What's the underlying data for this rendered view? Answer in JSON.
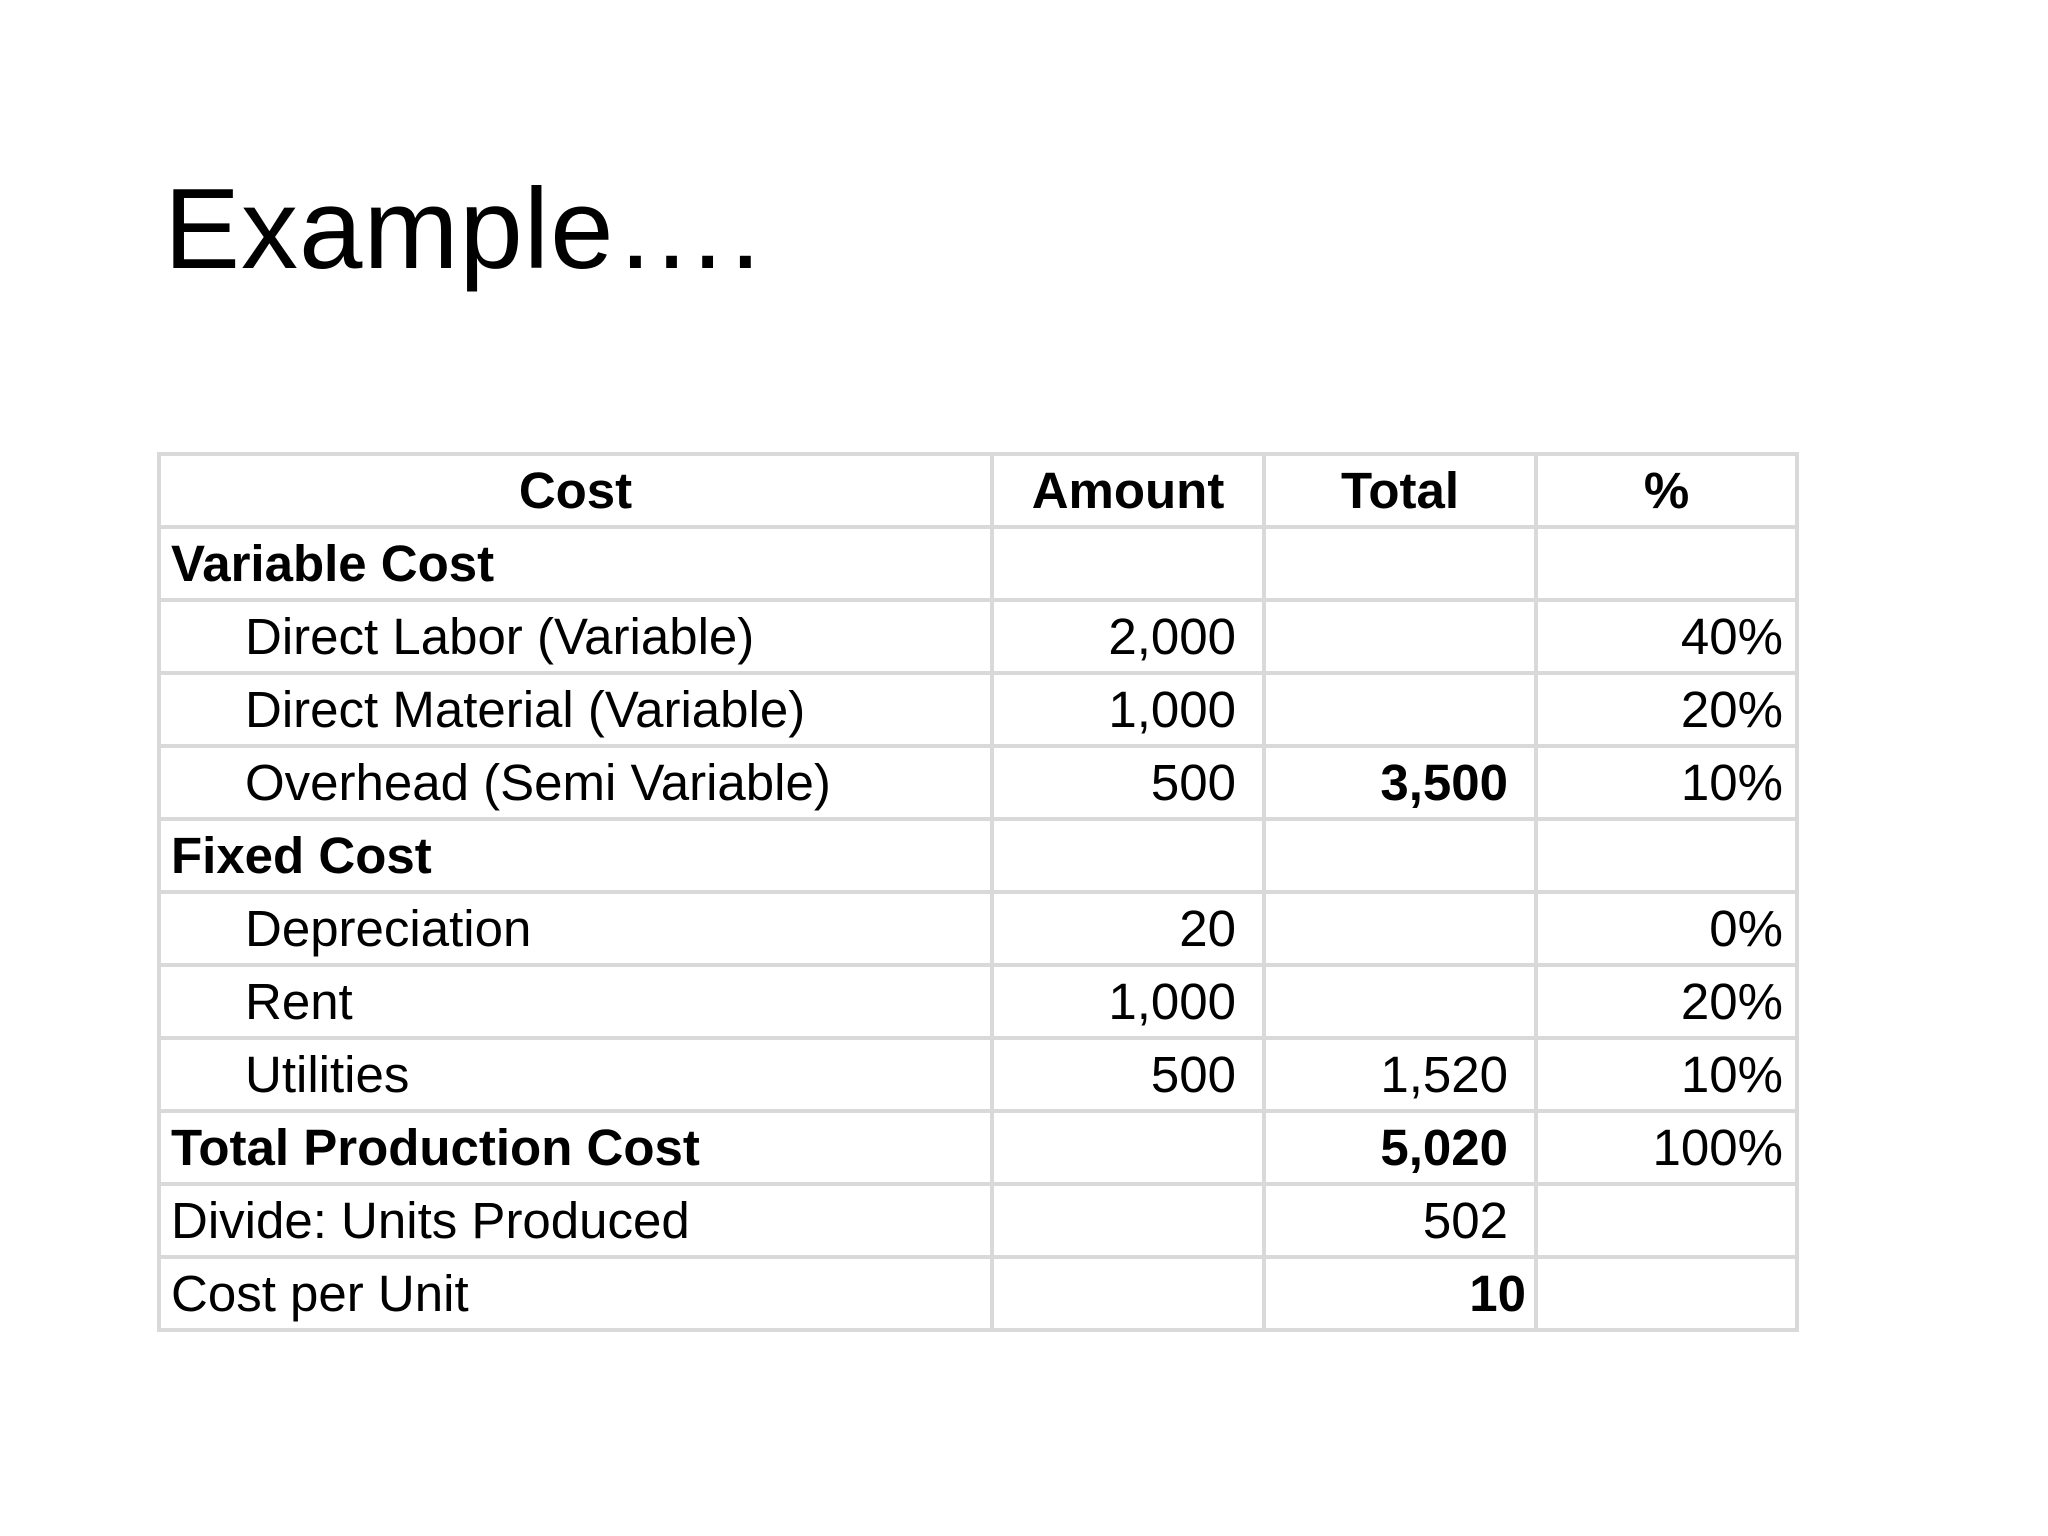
{
  "slide": {
    "title": "Example…."
  },
  "table": {
    "headers": {
      "cost": "Cost",
      "amount": "Amount",
      "total": "Total",
      "percent": "%"
    },
    "rows": [
      {
        "label": "Variable Cost",
        "amount": "",
        "total": "",
        "percent": ""
      },
      {
        "label": "Direct Labor (Variable)",
        "amount": "2,000",
        "total": "",
        "percent": "40%"
      },
      {
        "label": "Direct Material (Variable)",
        "amount": "1,000",
        "total": "",
        "percent": "20%"
      },
      {
        "label": "Overhead (Semi Variable)",
        "amount": "500",
        "total": "3,500",
        "percent": "10%"
      },
      {
        "label": "Fixed Cost",
        "amount": "",
        "total": "",
        "percent": ""
      },
      {
        "label": "Depreciation",
        "amount": "20",
        "total": "",
        "percent": "0%"
      },
      {
        "label": "Rent",
        "amount": "1,000",
        "total": "",
        "percent": "20%"
      },
      {
        "label": "Utilities",
        "amount": "500",
        "total": "1,520",
        "percent": "10%"
      },
      {
        "label": "Total Production Cost",
        "amount": "",
        "total": "5,020",
        "percent": "100%"
      },
      {
        "label": "Divide: Units Produced",
        "amount": "",
        "total": "502",
        "percent": ""
      },
      {
        "label": "Cost per Unit",
        "amount": "",
        "total": "10",
        "percent": ""
      }
    ]
  }
}
